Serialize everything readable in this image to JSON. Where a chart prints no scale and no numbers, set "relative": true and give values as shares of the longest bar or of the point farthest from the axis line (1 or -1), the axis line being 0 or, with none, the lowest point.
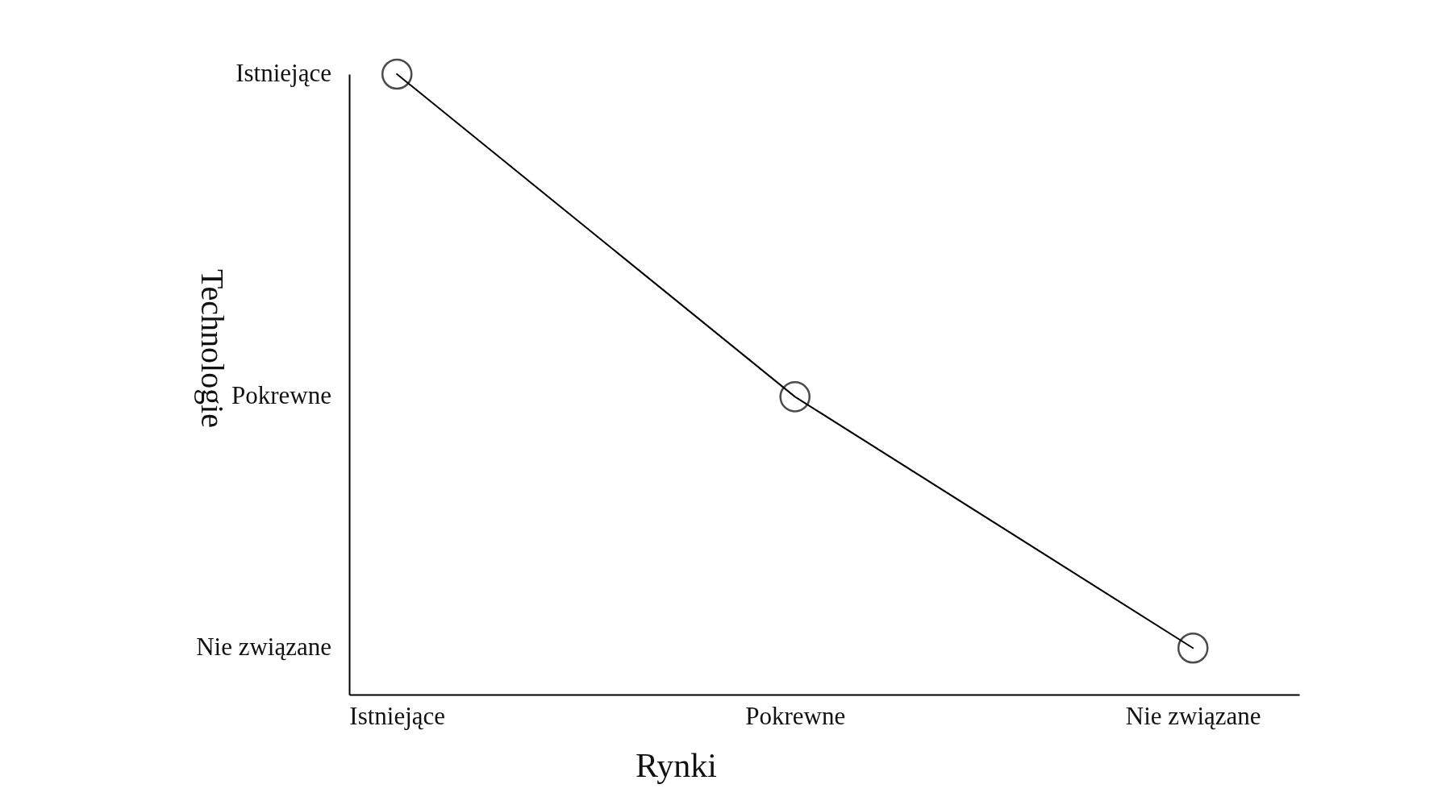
{
  "chart_data": {
    "type": "line",
    "xlabel": "Rynki",
    "ylabel": "Technologie",
    "relative": true,
    "categories": [
      "Istniejące",
      "Pokrewne",
      "Nie związane"
    ],
    "series": [
      {
        "color": "#000000",
        "values": [
          1,
          0.48,
          0.075
        ]
      }
    ],
    "annotations": [
      "Istniejące",
      "Pokrewne",
      "Nie związane"
    ],
    "marker": "circle",
    "line_style": "solid"
  }
}
